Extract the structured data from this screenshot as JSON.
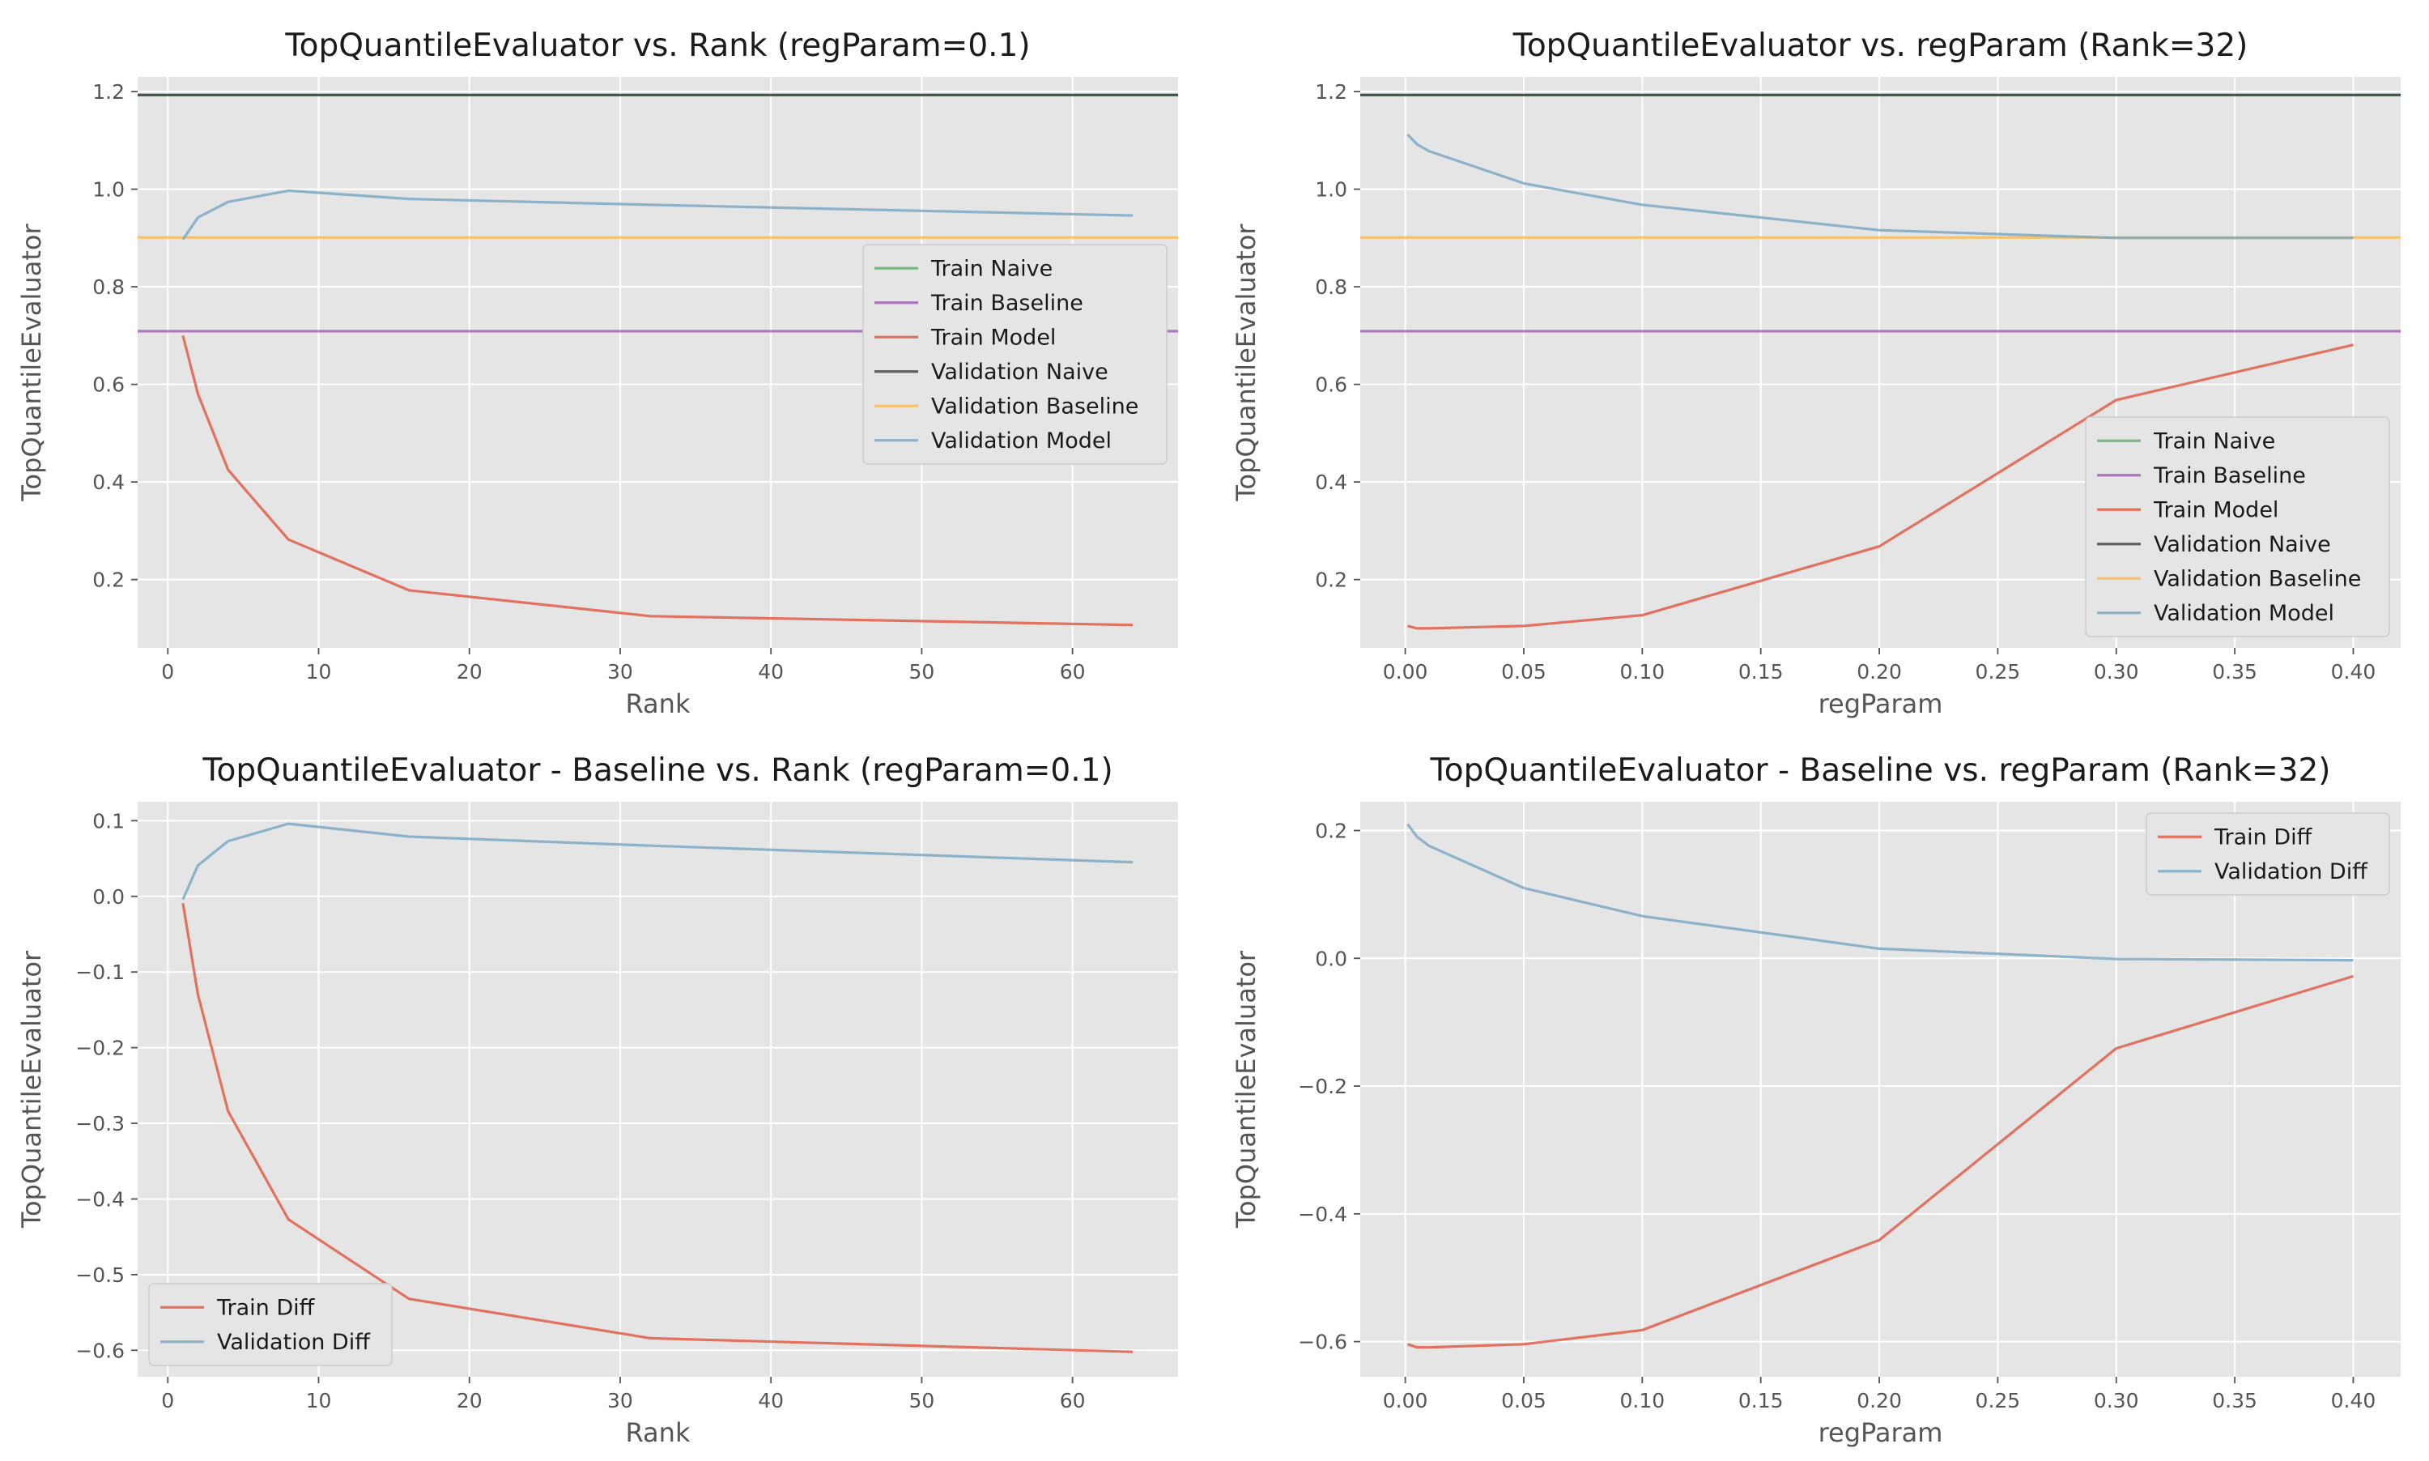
{
  "chart_data": [
    {
      "type": "line",
      "title": "TopQuantileEvaluator vs. Rank (regParam=0.1)",
      "xlabel": "Rank",
      "ylabel": "TopQuantileEvaluator",
      "xlim": [
        -2,
        67
      ],
      "ylim": [
        0.06,
        1.23
      ],
      "xticks": [
        0,
        10,
        20,
        30,
        40,
        50,
        60
      ],
      "xtick_labels": [
        "0",
        "10",
        "20",
        "30",
        "40",
        "50",
        "60"
      ],
      "yticks": [
        0.2,
        0.4,
        0.6,
        0.8,
        1.0,
        1.2
      ],
      "ytick_labels": [
        "0.2",
        "0.4",
        "0.6",
        "0.8",
        "1.0",
        "1.2"
      ],
      "grid": true,
      "legend_position": "center-right",
      "series": [
        {
          "name": "Train Naive",
          "color": "#55a868",
          "hline": 1.193
        },
        {
          "name": "Train Baseline",
          "color": "#9b4fb0",
          "hline": 0.709
        },
        {
          "name": "Train Model",
          "color": "#e24a33",
          "x": [
            1,
            2,
            4,
            8,
            16,
            32,
            64
          ],
          "y": [
            0.7,
            0.58,
            0.425,
            0.282,
            0.178,
            0.125,
            0.107
          ]
        },
        {
          "name": "Validation Naive",
          "color": "#333333",
          "hline": 1.193
        },
        {
          "name": "Validation Baseline",
          "color": "#fbb443",
          "hline": 0.901
        },
        {
          "name": "Validation Model",
          "color": "#6ea0c0",
          "x": [
            1,
            2,
            4,
            8,
            16,
            32,
            64
          ],
          "y": [
            0.897,
            0.942,
            0.974,
            0.997,
            0.98,
            0.968,
            0.946
          ]
        }
      ]
    },
    {
      "type": "line",
      "title": "TopQuantileEvaluator vs. regParam (Rank=32)",
      "xlabel": "regParam",
      "ylabel": "TopQuantileEvaluator",
      "xlim": [
        -0.019,
        0.42
      ],
      "ylim": [
        0.06,
        1.23
      ],
      "xticks": [
        0.0,
        0.05,
        0.1,
        0.15,
        0.2,
        0.25,
        0.3,
        0.35,
        0.4
      ],
      "xtick_labels": [
        "0.00",
        "0.05",
        "0.10",
        "0.15",
        "0.20",
        "0.25",
        "0.30",
        "0.35",
        "0.40"
      ],
      "yticks": [
        0.2,
        0.4,
        0.6,
        0.8,
        1.0,
        1.2
      ],
      "ytick_labels": [
        "0.2",
        "0.4",
        "0.6",
        "0.8",
        "1.0",
        "1.2"
      ],
      "grid": true,
      "legend_position": "lower-right",
      "series": [
        {
          "name": "Train Naive",
          "color": "#55a868",
          "hline": 1.193
        },
        {
          "name": "Train Baseline",
          "color": "#9b4fb0",
          "hline": 0.709
        },
        {
          "name": "Train Model",
          "color": "#e24a33",
          "x": [
            0.001,
            0.005,
            0.01,
            0.05,
            0.1,
            0.2,
            0.3,
            0.4
          ],
          "y": [
            0.105,
            0.1,
            0.1,
            0.105,
            0.127,
            0.268,
            0.568,
            0.681
          ]
        },
        {
          "name": "Validation Naive",
          "color": "#333333",
          "hline": 1.193
        },
        {
          "name": "Validation Baseline",
          "color": "#fbb443",
          "hline": 0.901
        },
        {
          "name": "Validation Model",
          "color": "#6ea0c0",
          "x": [
            0.001,
            0.005,
            0.01,
            0.05,
            0.1,
            0.2,
            0.3,
            0.4
          ],
          "y": [
            1.112,
            1.092,
            1.078,
            1.012,
            0.968,
            0.916,
            0.9,
            0.9
          ]
        }
      ]
    },
    {
      "type": "line",
      "title": "TopQuantileEvaluator - Baseline vs. Rank (regParam=0.1)",
      "xlabel": "Rank",
      "ylabel": "TopQuantileEvaluator",
      "xlim": [
        -2,
        67
      ],
      "ylim": [
        -0.635,
        0.125
      ],
      "xticks": [
        0,
        10,
        20,
        30,
        40,
        50,
        60
      ],
      "xtick_labels": [
        "0",
        "10",
        "20",
        "30",
        "40",
        "50",
        "60"
      ],
      "yticks": [
        -0.6,
        -0.5,
        -0.4,
        -0.3,
        -0.2,
        -0.1,
        0.0,
        0.1
      ],
      "ytick_labels": [
        "−0.6",
        "−0.5",
        "−0.4",
        "−0.3",
        "−0.2",
        "−0.1",
        "0.0",
        "0.1"
      ],
      "grid": true,
      "legend_position": "lower-left",
      "series": [
        {
          "name": "Train Diff",
          "color": "#e24a33",
          "x": [
            1,
            2,
            4,
            8,
            16,
            32,
            64
          ],
          "y": [
            -0.009,
            -0.13,
            -0.284,
            -0.427,
            -0.532,
            -0.584,
            -0.602
          ]
        },
        {
          "name": "Validation Diff",
          "color": "#6ea0c0",
          "x": [
            1,
            2,
            4,
            8,
            16,
            32,
            64
          ],
          "y": [
            -0.004,
            0.041,
            0.073,
            0.096,
            0.079,
            0.067,
            0.045
          ]
        }
      ]
    },
    {
      "type": "line",
      "title": "TopQuantileEvaluator - Baseline vs. regParam (Rank=32)",
      "xlabel": "regParam",
      "ylabel": "TopQuantileEvaluator",
      "xlim": [
        -0.019,
        0.42
      ],
      "ylim": [
        -0.655,
        0.245
      ],
      "xticks": [
        0.0,
        0.05,
        0.1,
        0.15,
        0.2,
        0.25,
        0.3,
        0.35,
        0.4
      ],
      "xtick_labels": [
        "0.00",
        "0.05",
        "0.10",
        "0.15",
        "0.20",
        "0.25",
        "0.30",
        "0.35",
        "0.40"
      ],
      "yticks": [
        -0.6,
        -0.4,
        -0.2,
        0.0,
        0.2
      ],
      "ytick_labels": [
        "−0.6",
        "−0.4",
        "−0.2",
        "0.0",
        "0.2"
      ],
      "grid": true,
      "legend_position": "upper-right",
      "series": [
        {
          "name": "Train Diff",
          "color": "#e24a33",
          "x": [
            0.001,
            0.005,
            0.01,
            0.05,
            0.1,
            0.2,
            0.3,
            0.4
          ],
          "y": [
            -0.604,
            -0.609,
            -0.609,
            -0.604,
            -0.582,
            -0.441,
            -0.141,
            -0.028
          ]
        },
        {
          "name": "Validation Diff",
          "color": "#6ea0c0",
          "x": [
            0.001,
            0.005,
            0.01,
            0.05,
            0.1,
            0.2,
            0.3,
            0.4
          ],
          "y": [
            0.21,
            0.19,
            0.176,
            0.11,
            0.066,
            0.015,
            -0.001,
            -0.003
          ]
        }
      ]
    }
  ]
}
